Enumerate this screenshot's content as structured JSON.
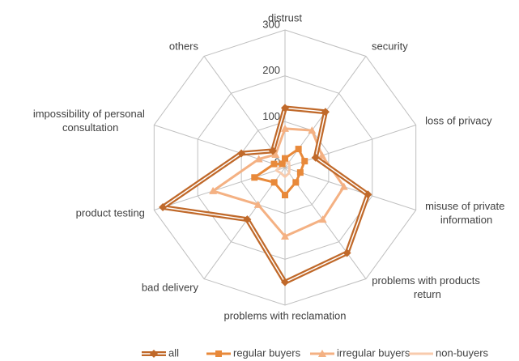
{
  "chart_data": {
    "type": "radar",
    "categories": [
      "distrust",
      "security",
      "loss of privacy",
      "misuse of private information",
      "problems with products return",
      "problems with reclamation",
      "bad delivery",
      "product testing",
      "impossibility of personal consultation",
      "others"
    ],
    "ylim": [
      0,
      300
    ],
    "yticks": [
      0,
      100,
      200,
      300
    ],
    "grid": true,
    "legend": "bottom",
    "series": [
      {
        "name": "all",
        "color": "#c0692a",
        "marker": "diamond",
        "values": [
          130,
          150,
          70,
          190,
          230,
          250,
          140,
          280,
          100,
          45
        ]
      },
      {
        "name": "regular buyers",
        "color": "#e8893a",
        "marker": "square",
        "values": [
          20,
          50,
          45,
          35,
          40,
          60,
          40,
          70,
          25,
          10
        ]
      },
      {
        "name": "irregular buyers",
        "color": "#f4b183",
        "marker": "triangle",
        "values": [
          85,
          100,
          85,
          135,
          140,
          150,
          100,
          165,
          60,
          35
        ]
      },
      {
        "name": "non-buyers",
        "color": "#f8cbad",
        "marker": "none",
        "values": [
          10,
          15,
          10,
          10,
          15,
          20,
          15,
          20,
          10,
          5
        ]
      }
    ]
  }
}
